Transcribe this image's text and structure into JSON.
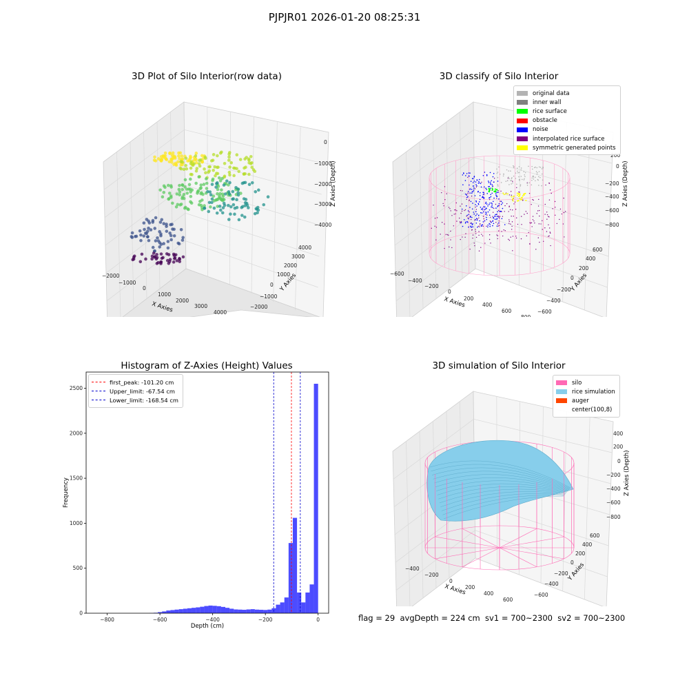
{
  "suptitle": "PJPJR01 2026-01-20 08:25:31",
  "status_line": "flag = 29  avgDepth = 224 cm  sv1 = 700~2300  sv2 = 700~2300",
  "chart_data": [
    {
      "type": "scatter",
      "title": "3D Plot of Silo Interior(row data)",
      "xlabel": "X Axies",
      "ylabel": "Y Axies",
      "zlabel": "Z Axies (Depth)",
      "xticks": [
        "−2000",
        "−1000",
        "0",
        "1000",
        "2000",
        "3000",
        "4000"
      ],
      "yticks": [
        "−2000",
        "−1000",
        "0",
        "1000",
        "2000",
        "3000",
        "4000"
      ],
      "zticks": [
        "0",
        "−1000",
        "−2000",
        "−3000",
        "−4000"
      ],
      "colormap": "viridis"
    },
    {
      "type": "scatter",
      "title": "3D classify of Silo Interior",
      "xlabel": "X Axies",
      "ylabel": "Y Axies",
      "zlabel": "Z Axies (Depth)",
      "xticks": [
        "−600",
        "−400",
        "−200",
        "0",
        "200",
        "400",
        "600",
        "800"
      ],
      "yticks": [
        "−600",
        "−400",
        "−200",
        "0",
        "200",
        "400",
        "600"
      ],
      "zticks": [
        "200",
        "0",
        "−200",
        "−400",
        "−600",
        "−800"
      ],
      "legend": [
        {
          "label": "original data",
          "color": "#b3b3b3"
        },
        {
          "label": "inner wall",
          "color": "#808080"
        },
        {
          "label": "rice surface",
          "color": "#00ff00"
        },
        {
          "label": "obstacle",
          "color": "#ff0000"
        },
        {
          "label": "noise",
          "color": "#0000ff"
        },
        {
          "label": "interpolated rice surface",
          "color": "#800080"
        },
        {
          "label": "symmetric generated points",
          "color": "#ffff00"
        }
      ]
    },
    {
      "type": "bar",
      "title": "Histogram of Z-Axies (Height) Values",
      "xlabel": "Depth (cm)",
      "ylabel": "Frequency",
      "xlim": [
        -880,
        40
      ],
      "ylim": [
        0,
        2680
      ],
      "xticks": [
        -800,
        -600,
        -400,
        -200,
        0
      ],
      "xtick_labels": [
        "−800",
        "−600",
        "−400",
        "−200",
        "0"
      ],
      "yticks": [
        0,
        500,
        1000,
        1500,
        2000,
        2500
      ],
      "bin_width": 16,
      "bins_start": [
        -640,
        -624,
        -608,
        -592,
        -576,
        -560,
        -544,
        -528,
        -512,
        -496,
        -480,
        -464,
        -448,
        -432,
        -416,
        -400,
        -384,
        -368,
        -352,
        -336,
        -320,
        -304,
        -288,
        -272,
        -256,
        -240,
        -224,
        -208,
        -192,
        -176,
        -160,
        -144,
        -128,
        -112,
        -96,
        -80,
        -64,
        -48,
        -32,
        -16
      ],
      "values": [
        2,
        5,
        12,
        20,
        30,
        35,
        40,
        45,
        50,
        55,
        60,
        65,
        72,
        80,
        85,
        82,
        78,
        70,
        60,
        50,
        42,
        40,
        38,
        42,
        45,
        40,
        38,
        36,
        40,
        55,
        95,
        120,
        175,
        780,
        1060,
        230,
        120,
        230,
        320,
        2550
      ],
      "bar_color": "#0000ff",
      "vlines": [
        {
          "x": -101.2,
          "color": "#ff0000",
          "label": "first_peak: -101.20 cm"
        },
        {
          "x": -67.54,
          "color": "#0000cc",
          "label": "Upper_limit: -67.54 cm"
        },
        {
          "x": -168.54,
          "color": "#0000cc",
          "label": "Lower_limit: -168.54 cm"
        }
      ]
    },
    {
      "type": "surface",
      "title": "3D simulation of Silo Interior",
      "xlabel": "X Axies",
      "ylabel": "Y Axies",
      "zlabel": "Z Axies (Depth)",
      "xticks": [
        "−400",
        "−200",
        "0",
        "200",
        "400",
        "600"
      ],
      "yticks": [
        "−600",
        "−400",
        "−200",
        "0",
        "200",
        "400",
        "600"
      ],
      "zticks": [
        "400",
        "200",
        "0",
        "−200",
        "−400",
        "−600",
        "−800"
      ],
      "legend": [
        {
          "label": "silo",
          "color": "#ff69b4"
        },
        {
          "label": "rice simulation",
          "color": "#87ceeb"
        },
        {
          "label": "auger",
          "color": "#ff4500"
        },
        {
          "label": "center(100,8)",
          "color": ""
        }
      ]
    }
  ]
}
